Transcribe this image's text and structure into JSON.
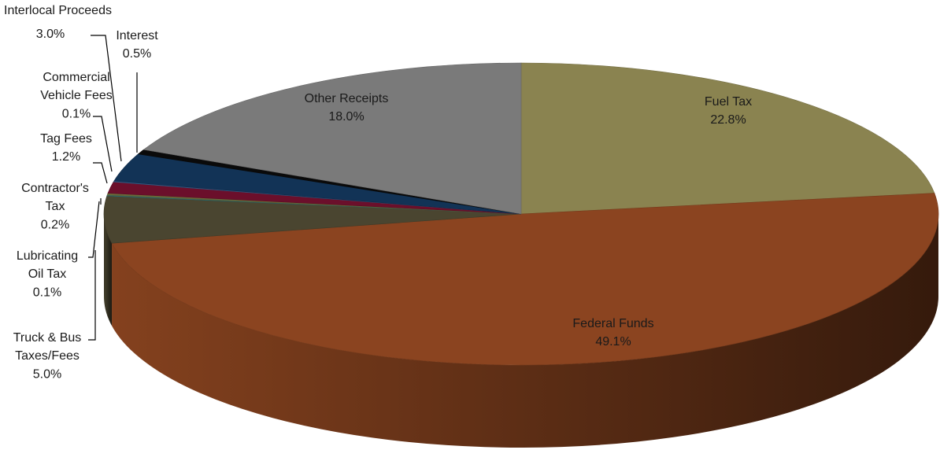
{
  "chart_data": {
    "type": "pie",
    "style": "3d-exploded-perspective",
    "slices": [
      {
        "name": "Fuel Tax",
        "value": 22.8,
        "label": "22.8%",
        "color": "#8a8350",
        "label_lines": [
          "Fuel Tax"
        ],
        "label_mode": "inside"
      },
      {
        "name": "Federal Funds",
        "value": 49.1,
        "label": "49.1%",
        "color": "#8b4420",
        "label_lines": [
          "Federal Funds"
        ],
        "label_mode": "inside"
      },
      {
        "name": "Truck & Bus Taxes/Fees",
        "value": 5.0,
        "label": "5.0%",
        "color": "#4a4530",
        "label_lines": [
          "Truck & Bus",
          "Taxes/Fees"
        ],
        "label_mode": "outside"
      },
      {
        "name": "Lubricating Oil Tax",
        "value": 0.1,
        "label": "0.1%",
        "color": "#2e6f6f",
        "label_lines": [
          "Lubricating",
          "Oil Tax"
        ],
        "label_mode": "outside"
      },
      {
        "name": "Contractor's Tax",
        "value": 0.2,
        "label": "0.2%",
        "color": "#6a6a3a",
        "label_lines": [
          "Contractor's",
          "Tax"
        ],
        "label_mode": "outside"
      },
      {
        "name": "Tag Fees",
        "value": 1.2,
        "label": "1.2%",
        "color": "#6b0f2b",
        "label_lines": [
          "Tag Fees"
        ],
        "label_mode": "outside"
      },
      {
        "name": "Commercial Vehicle Fees",
        "value": 0.1,
        "label": "0.1%",
        "color": "#3a5e8a",
        "label_lines": [
          "Commercial",
          "Vehicle Fees"
        ],
        "label_mode": "outside"
      },
      {
        "name": "Interlocal Proceeds",
        "value": 3.0,
        "label": "3.0%",
        "color": "#123356",
        "label_lines": [
          "Interlocal Proceeds"
        ],
        "label_mode": "outside"
      },
      {
        "name": "Interest",
        "value": 0.5,
        "label": "0.5%",
        "color": "#0a0a0a",
        "label_lines": [
          "Interest"
        ],
        "label_mode": "outside"
      },
      {
        "name": "Other Receipts",
        "value": 18.0,
        "label": "18.0%",
        "color": "#7a7a7a",
        "label_lines": [
          "Other Receipts"
        ],
        "label_mode": "inside"
      }
    ],
    "title": "",
    "legend": "none"
  }
}
